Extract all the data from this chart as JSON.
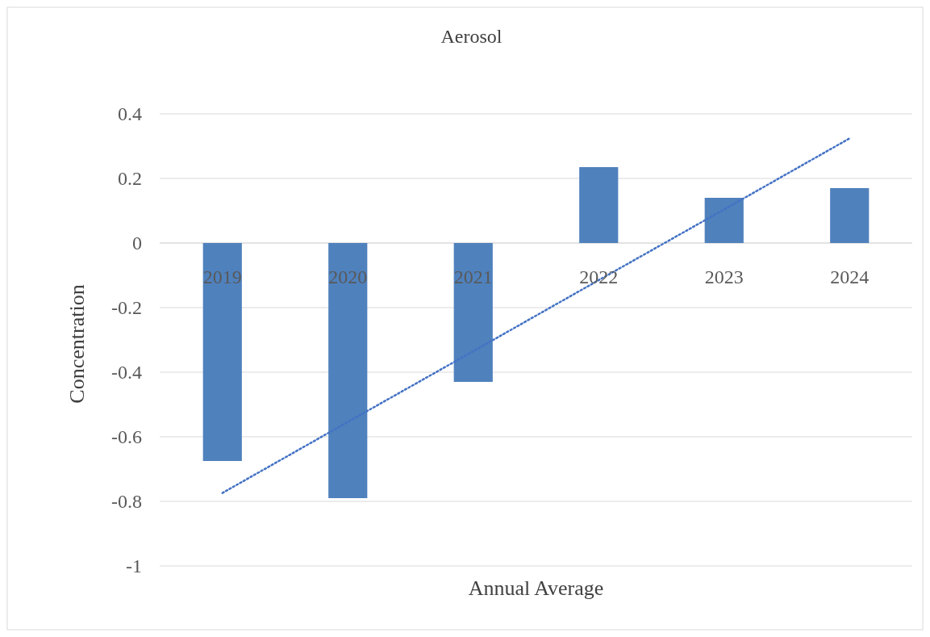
{
  "chart_data": {
    "type": "bar",
    "title": "Aerosol",
    "xlabel": "Annual Average",
    "ylabel": "Concentration",
    "categories": [
      "2019",
      "2020",
      "2021",
      "2022",
      "2023",
      "2024"
    ],
    "series": [
      {
        "color": "#4f81bd",
        "values": [
          -0.675,
          -0.79,
          -0.43,
          0.235,
          0.14,
          0.17
        ]
      },
      {
        "type": "line",
        "color": "#4472c4",
        "values": [
          -0.774,
          -0.554,
          -0.335,
          -0.115,
          0.104,
          0.324
        ],
        "line_style": "dotted",
        "marker": "none"
      }
    ],
    "ylim": [
      -1,
      0.4
    ],
    "yticks": [
      -1,
      -0.8,
      -0.6,
      -0.4,
      -0.2,
      0,
      0.2,
      0.4
    ],
    "grid": "y"
  }
}
